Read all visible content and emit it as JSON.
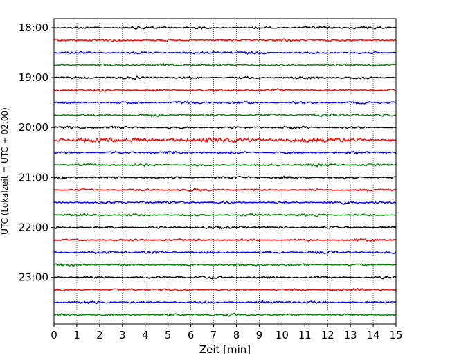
{
  "chart_data": {
    "type": "line",
    "title": "",
    "xlabel": "Zeit  [min]",
    "ylabel": "UTC (Lokalzeit = UTC + 02:00)",
    "xlim": [
      0,
      15
    ],
    "x_ticks": [
      0,
      1,
      2,
      3,
      4,
      5,
      6,
      7,
      8,
      9,
      10,
      11,
      12,
      13,
      14,
      15
    ],
    "grid": "vertical dotted lines at each minute",
    "trace_interval_min": 15,
    "start_time": "18:00",
    "traces_count": 24,
    "y_tick_labels": [
      "18:00",
      "19:00",
      "20:00",
      "21:00",
      "22:00",
      "23:00"
    ],
    "colors_cycle": [
      "#000000",
      "#ff0000",
      "#0000ff",
      "#008000"
    ],
    "noisy_trace": {
      "label": "20:15",
      "amplitude": "elevated"
    }
  }
}
